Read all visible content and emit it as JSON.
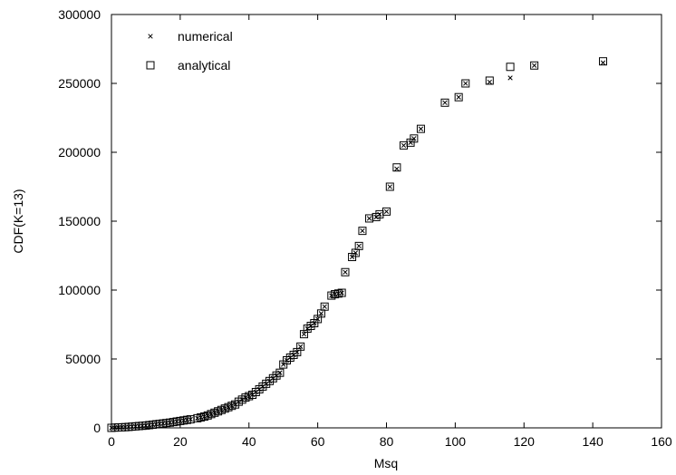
{
  "chart_data": {
    "type": "scatter",
    "title": "",
    "xlabel": "Msq",
    "ylabel": "CDF(K=13)",
    "xlim": [
      0,
      160
    ],
    "ylim": [
      0,
      300000
    ],
    "x_ticks": [
      0,
      20,
      40,
      60,
      80,
      100,
      120,
      140,
      160
    ],
    "y_ticks": [
      0,
      50000,
      100000,
      150000,
      200000,
      250000,
      300000
    ],
    "x_tick_labels": [
      "0",
      "20",
      "40",
      "60",
      "80",
      "100",
      "120",
      "140",
      "160"
    ],
    "y_tick_labels": [
      "0",
      "50000",
      "100000",
      "150000",
      "200000",
      "250000",
      "300000"
    ],
    "grid": false,
    "legend": "top-left",
    "series": [
      {
        "name": "numerical",
        "marker": "x",
        "points": [
          [
            0,
            0
          ],
          [
            1,
            200
          ],
          [
            2,
            300
          ],
          [
            3,
            400
          ],
          [
            4,
            500
          ],
          [
            5,
            700
          ],
          [
            6,
            900
          ],
          [
            7,
            1100
          ],
          [
            8,
            1300
          ],
          [
            9,
            1500
          ],
          [
            10,
            1700
          ],
          [
            11,
            2000
          ],
          [
            12,
            2300
          ],
          [
            13,
            2600
          ],
          [
            14,
            2900
          ],
          [
            15,
            3200
          ],
          [
            16,
            3500
          ],
          [
            17,
            3800
          ],
          [
            18,
            4200
          ],
          [
            19,
            4600
          ],
          [
            20,
            5000
          ],
          [
            21,
            5400
          ],
          [
            22,
            5800
          ],
          [
            23,
            6200
          ],
          [
            25,
            7000
          ],
          [
            26,
            7600
          ],
          [
            27,
            8200
          ],
          [
            28,
            9000
          ],
          [
            29,
            10000
          ],
          [
            30,
            11000
          ],
          [
            31,
            12000
          ],
          [
            32,
            13000
          ],
          [
            33,
            14000
          ],
          [
            34,
            15000
          ],
          [
            35,
            16000
          ],
          [
            36,
            17000
          ],
          [
            37,
            19000
          ],
          [
            38,
            20500
          ],
          [
            39,
            22000
          ],
          [
            40,
            23000
          ],
          [
            41,
            24000
          ],
          [
            42,
            26000
          ],
          [
            43,
            28000
          ],
          [
            44,
            30000
          ],
          [
            45,
            32000
          ],
          [
            46,
            34000
          ],
          [
            47,
            36000
          ],
          [
            48,
            38000
          ],
          [
            49,
            40000
          ],
          [
            50,
            46000
          ],
          [
            51,
            49000
          ],
          [
            52,
            51000
          ],
          [
            53,
            53000
          ],
          [
            54,
            55000
          ],
          [
            55,
            59000
          ],
          [
            56,
            68000
          ],
          [
            57,
            72000
          ],
          [
            58,
            74000
          ],
          [
            59,
            76000
          ],
          [
            60,
            79000
          ],
          [
            61,
            83000
          ],
          [
            62,
            88000
          ],
          [
            64,
            96000
          ],
          [
            65,
            97000
          ],
          [
            66,
            97500
          ],
          [
            67,
            98000
          ],
          [
            68,
            113000
          ],
          [
            70,
            124000
          ],
          [
            71,
            127000
          ],
          [
            72,
            132000
          ],
          [
            73,
            143000
          ],
          [
            75,
            152000
          ],
          [
            77,
            153000
          ],
          [
            78,
            155000
          ],
          [
            80,
            157000
          ],
          [
            81,
            175000
          ],
          [
            83,
            188000
          ],
          [
            85,
            205000
          ],
          [
            87,
            207000
          ],
          [
            88,
            210000
          ],
          [
            90,
            217000
          ],
          [
            97,
            236000
          ],
          [
            101,
            240000
          ],
          [
            103,
            250000
          ],
          [
            110,
            251000
          ],
          [
            116,
            254000
          ],
          [
            123,
            263000
          ],
          [
            143,
            265000
          ]
        ]
      },
      {
        "name": "analytical",
        "marker": "square",
        "points": [
          [
            0,
            0
          ],
          [
            1,
            200
          ],
          [
            2,
            300
          ],
          [
            3,
            400
          ],
          [
            4,
            500
          ],
          [
            5,
            700
          ],
          [
            6,
            900
          ],
          [
            7,
            1100
          ],
          [
            8,
            1300
          ],
          [
            9,
            1500
          ],
          [
            10,
            1700
          ],
          [
            11,
            2000
          ],
          [
            12,
            2300
          ],
          [
            13,
            2600
          ],
          [
            14,
            2900
          ],
          [
            15,
            3200
          ],
          [
            16,
            3500
          ],
          [
            17,
            3800
          ],
          [
            18,
            4200
          ],
          [
            19,
            4600
          ],
          [
            20,
            5000
          ],
          [
            21,
            5400
          ],
          [
            22,
            5800
          ],
          [
            23,
            6200
          ],
          [
            25,
            7000
          ],
          [
            26,
            7600
          ],
          [
            27,
            8200
          ],
          [
            28,
            9000
          ],
          [
            29,
            10000
          ],
          [
            30,
            11000
          ],
          [
            31,
            12000
          ],
          [
            32,
            13000
          ],
          [
            33,
            14000
          ],
          [
            34,
            15000
          ],
          [
            35,
            16000
          ],
          [
            36,
            17000
          ],
          [
            37,
            19000
          ],
          [
            38,
            20500
          ],
          [
            39,
            22000
          ],
          [
            40,
            23000
          ],
          [
            41,
            24000
          ],
          [
            42,
            26000
          ],
          [
            43,
            28000
          ],
          [
            44,
            30000
          ],
          [
            45,
            32000
          ],
          [
            46,
            34000
          ],
          [
            47,
            36000
          ],
          [
            48,
            38000
          ],
          [
            49,
            40000
          ],
          [
            50,
            46000
          ],
          [
            51,
            49000
          ],
          [
            52,
            51000
          ],
          [
            53,
            53000
          ],
          [
            54,
            55000
          ],
          [
            55,
            59000
          ],
          [
            56,
            68000
          ],
          [
            57,
            72000
          ],
          [
            58,
            74000
          ],
          [
            59,
            76000
          ],
          [
            60,
            79000
          ],
          [
            61,
            83000
          ],
          [
            62,
            88000
          ],
          [
            64,
            96000
          ],
          [
            65,
            97000
          ],
          [
            66,
            97500
          ],
          [
            67,
            98000
          ],
          [
            68,
            113000
          ],
          [
            70,
            124000
          ],
          [
            71,
            127000
          ],
          [
            72,
            132000
          ],
          [
            73,
            143000
          ],
          [
            75,
            152000
          ],
          [
            77,
            153000
          ],
          [
            78,
            155000
          ],
          [
            80,
            157000
          ],
          [
            81,
            175000
          ],
          [
            83,
            189000
          ],
          [
            85,
            205000
          ],
          [
            87,
            207000
          ],
          [
            88,
            210000
          ],
          [
            90,
            217000
          ],
          [
            97,
            236000
          ],
          [
            101,
            240000
          ],
          [
            103,
            250000
          ],
          [
            110,
            252000
          ],
          [
            116,
            262000
          ],
          [
            123,
            263000
          ],
          [
            143,
            266000
          ]
        ]
      }
    ]
  }
}
